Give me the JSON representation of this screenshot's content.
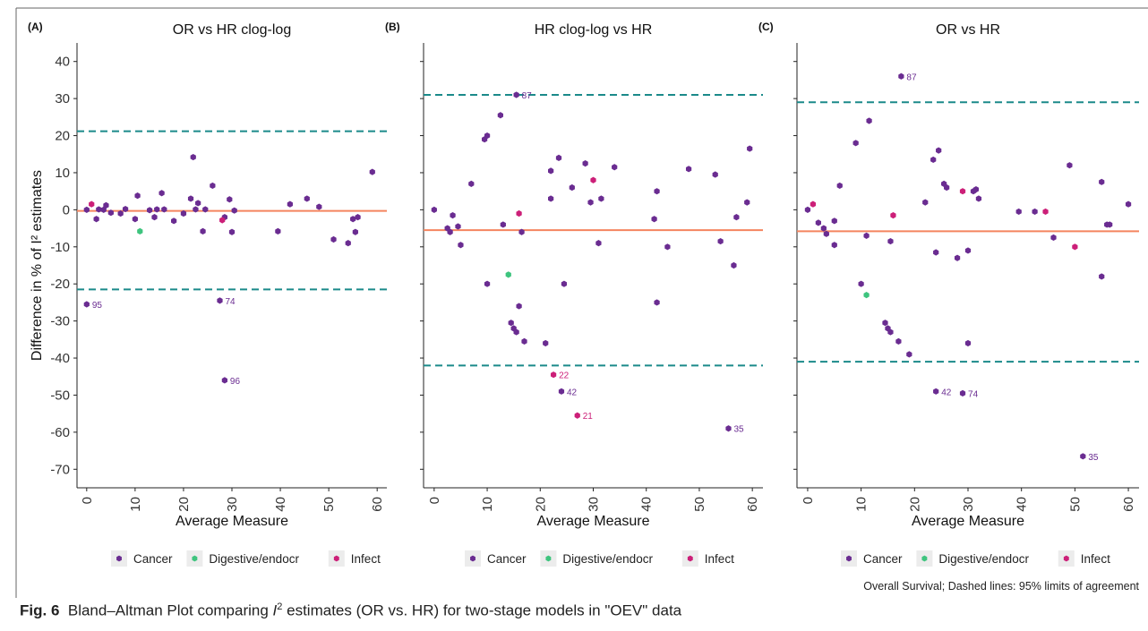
{
  "figure": {
    "caption_label": "Fig. 6",
    "caption_text_before": "Bland–Altman Plot comparing ",
    "caption_i": "I",
    "caption_sup": "2",
    "caption_text_after": " estimates (OR vs. HR) for two-stage models in \"OEV\" data",
    "note": "Overall Survival; Dashed lines: 95% limits of agreement"
  },
  "colors": {
    "Cancer": "#6a2c91",
    "Digestive/endocr": "#3ec47e",
    "Infect": "#cc1f78",
    "mean_line": "#f4845f",
    "limit_line": "#1b8a8a"
  },
  "chart_data": [
    {
      "type": "scatter",
      "panel": "(A)",
      "title": "OR vs HR clog-log",
      "xlabel": "Average Measure",
      "ylabel": "Difference in % of I² estimates",
      "xticks": [
        0,
        10,
        20,
        30,
        40,
        50,
        60
      ],
      "yticks": [
        -70,
        -60,
        -50,
        -40,
        -30,
        -20,
        -10,
        0,
        10,
        20,
        30,
        40
      ],
      "xlim": [
        -2,
        62
      ],
      "ylim": [
        -75,
        45
      ],
      "mean_diff": -0.3,
      "limits_of_agreement": [
        -21.5,
        21.2
      ],
      "grid": false,
      "legend": {
        "position": "bottom",
        "entries": [
          "Cancer",
          "Digestive/endocr",
          "Infect"
        ]
      },
      "series": [
        {
          "name": "Cancer",
          "points": [
            [
              0,
              0
            ],
            [
              2,
              -2.5
            ],
            [
              2.5,
              0.1
            ],
            [
              3.5,
              0
            ],
            [
              4,
              1.2
            ],
            [
              5,
              -0.8
            ],
            [
              7,
              -1
            ],
            [
              8,
              0.2
            ],
            [
              10,
              -2.5
            ],
            [
              10.5,
              3.8
            ],
            [
              13,
              -0.1
            ],
            [
              14,
              -2
            ],
            [
              14.5,
              0.1
            ],
            [
              15.5,
              4.5
            ],
            [
              16,
              0.1
            ],
            [
              18,
              -3
            ],
            [
              20,
              -1
            ],
            [
              21.5,
              3
            ],
            [
              22,
              14.2
            ],
            [
              22.5,
              0.1
            ],
            [
              23,
              1.8
            ],
            [
              24,
              -5.8
            ],
            [
              24.5,
              0.1
            ],
            [
              26,
              6.5
            ],
            [
              28.5,
              -2
            ],
            [
              29.5,
              2.8
            ],
            [
              30,
              -6
            ],
            [
              30.5,
              -0.2
            ],
            [
              39.5,
              -5.8
            ],
            [
              42,
              1.5
            ],
            [
              45.5,
              3
            ],
            [
              48,
              0.8
            ],
            [
              51,
              -8
            ],
            [
              54,
              -9
            ],
            [
              55,
              -2.5
            ],
            [
              55.5,
              -6
            ],
            [
              56,
              -2
            ],
            [
              59,
              10.2
            ],
            [
              0,
              -25.5
            ],
            [
              27.5,
              -24.5
            ],
            [
              28.5,
              -46
            ]
          ]
        },
        {
          "name": "Digestive/endocr",
          "points": [
            [
              11,
              -5.8
            ]
          ]
        },
        {
          "name": "Infect",
          "points": [
            [
              1,
              1.5
            ],
            [
              28,
              -2.8
            ]
          ]
        }
      ],
      "annotations": [
        {
          "text": "95",
          "x": 0,
          "y": -25.5
        },
        {
          "text": "74",
          "x": 27.5,
          "y": -24.5
        },
        {
          "text": "96",
          "x": 28.5,
          "y": -46
        }
      ]
    },
    {
      "type": "scatter",
      "panel": "(B)",
      "title": "HR clog-log vs HR",
      "xlabel": "Average Measure",
      "xticks": [
        0,
        10,
        20,
        30,
        40,
        50,
        60
      ],
      "xlim": [
        -2,
        62
      ],
      "ylim": [
        -75,
        45
      ],
      "mean_diff": -5.5,
      "limits_of_agreement": [
        -42,
        31
      ],
      "grid": false,
      "legend": {
        "position": "bottom",
        "entries": [
          "Cancer",
          "Digestive/endocr",
          "Infect"
        ]
      },
      "series": [
        {
          "name": "Cancer",
          "points": [
            [
              0,
              0
            ],
            [
              2.5,
              -5
            ],
            [
              3,
              -6
            ],
            [
              3.5,
              -1.5
            ],
            [
              4.5,
              -4.5
            ],
            [
              5,
              -9.5
            ],
            [
              7,
              7
            ],
            [
              9.5,
              19
            ],
            [
              10,
              20
            ],
            [
              10,
              -20
            ],
            [
              12.5,
              25.5
            ],
            [
              13,
              -4
            ],
            [
              14.5,
              -30.5
            ],
            [
              15,
              -32
            ],
            [
              15.5,
              -33
            ],
            [
              15.5,
              31
            ],
            [
              16,
              -26
            ],
            [
              16.5,
              -6
            ],
            [
              17,
              -35.5
            ],
            [
              21,
              -36
            ],
            [
              22,
              10.5
            ],
            [
              22,
              3
            ],
            [
              23.5,
              14
            ],
            [
              24,
              -49
            ],
            [
              24.5,
              -20
            ],
            [
              26,
              6
            ],
            [
              28.5,
              12.5
            ],
            [
              29.5,
              2
            ],
            [
              31,
              -9
            ],
            [
              31.5,
              3
            ],
            [
              34,
              11.5
            ],
            [
              41.5,
              -2.5
            ],
            [
              42,
              -25
            ],
            [
              42,
              5
            ],
            [
              44,
              -10
            ],
            [
              48,
              11
            ],
            [
              53,
              9.5
            ],
            [
              54,
              -8.5
            ],
            [
              55.5,
              -59
            ],
            [
              56.5,
              -15
            ],
            [
              57,
              -2
            ],
            [
              59,
              2
            ],
            [
              59.5,
              16.5
            ]
          ]
        },
        {
          "name": "Digestive/endocr",
          "points": [
            [
              14,
              -17.5
            ]
          ]
        },
        {
          "name": "Infect",
          "points": [
            [
              16,
              -1
            ],
            [
              22.5,
              -44.5
            ],
            [
              27,
              -55.5
            ],
            [
              30,
              8
            ]
          ]
        }
      ],
      "annotations": [
        {
          "text": "87",
          "x": 15.5,
          "y": 31
        },
        {
          "text": "22",
          "x": 22.5,
          "y": -44.5
        },
        {
          "text": "42",
          "x": 24,
          "y": -49
        },
        {
          "text": "21",
          "x": 27,
          "y": -55.5
        },
        {
          "text": "35",
          "x": 55.5,
          "y": -59
        }
      ]
    },
    {
      "type": "scatter",
      "panel": "(C)",
      "title": "OR vs HR",
      "xlabel": "Average Measure",
      "xticks": [
        0,
        10,
        20,
        30,
        40,
        50,
        60
      ],
      "xlim": [
        -2,
        62
      ],
      "ylim": [
        -75,
        45
      ],
      "mean_diff": -5.8,
      "limits_of_agreement": [
        -41,
        29
      ],
      "grid": false,
      "legend": {
        "position": "bottom",
        "entries": [
          "Cancer",
          "Digestive/endocr",
          "Infect"
        ]
      },
      "series": [
        {
          "name": "Cancer",
          "points": [
            [
              0,
              0
            ],
            [
              2,
              -3.5
            ],
            [
              3,
              -5
            ],
            [
              3.5,
              -6.5
            ],
            [
              5,
              -3
            ],
            [
              5,
              -9.5
            ],
            [
              6,
              6.5
            ],
            [
              9,
              18
            ],
            [
              10,
              -20
            ],
            [
              11,
              -7
            ],
            [
              11.5,
              24
            ],
            [
              14.5,
              -30.5
            ],
            [
              15,
              -32
            ],
            [
              15.5,
              -33
            ],
            [
              15.5,
              -8.5
            ],
            [
              17,
              -35.5
            ],
            [
              17.5,
              36
            ],
            [
              19,
              -39
            ],
            [
              22,
              2
            ],
            [
              23.5,
              13.5
            ],
            [
              24,
              -11.5
            ],
            [
              24,
              -49
            ],
            [
              24.5,
              16
            ],
            [
              25.5,
              7
            ],
            [
              26,
              6
            ],
            [
              28,
              -13
            ],
            [
              29,
              -49.5
            ],
            [
              30,
              -11
            ],
            [
              30,
              -36
            ],
            [
              31,
              5
            ],
            [
              31.5,
              5.5
            ],
            [
              32,
              3
            ],
            [
              39.5,
              -0.5
            ],
            [
              42.5,
              -0.5
            ],
            [
              46,
              -7.5
            ],
            [
              49,
              12
            ],
            [
              51.5,
              -66.5
            ],
            [
              55,
              7.5
            ],
            [
              55,
              -18
            ],
            [
              56,
              -4
            ],
            [
              56.5,
              -4
            ],
            [
              60,
              1.5
            ]
          ]
        },
        {
          "name": "Digestive/endocr",
          "points": [
            [
              11,
              -23
            ]
          ]
        },
        {
          "name": "Infect",
          "points": [
            [
              1,
              1.5
            ],
            [
              16,
              -1.5
            ],
            [
              29,
              5
            ],
            [
              44.5,
              -0.5
            ],
            [
              50,
              -10
            ]
          ]
        }
      ],
      "annotations": [
        {
          "text": "87",
          "x": 17.5,
          "y": 36
        },
        {
          "text": "42",
          "x": 24,
          "y": -49
        },
        {
          "text": "74",
          "x": 29,
          "y": -49.5
        },
        {
          "text": "35",
          "x": 51.5,
          "y": -66.5
        }
      ]
    }
  ]
}
